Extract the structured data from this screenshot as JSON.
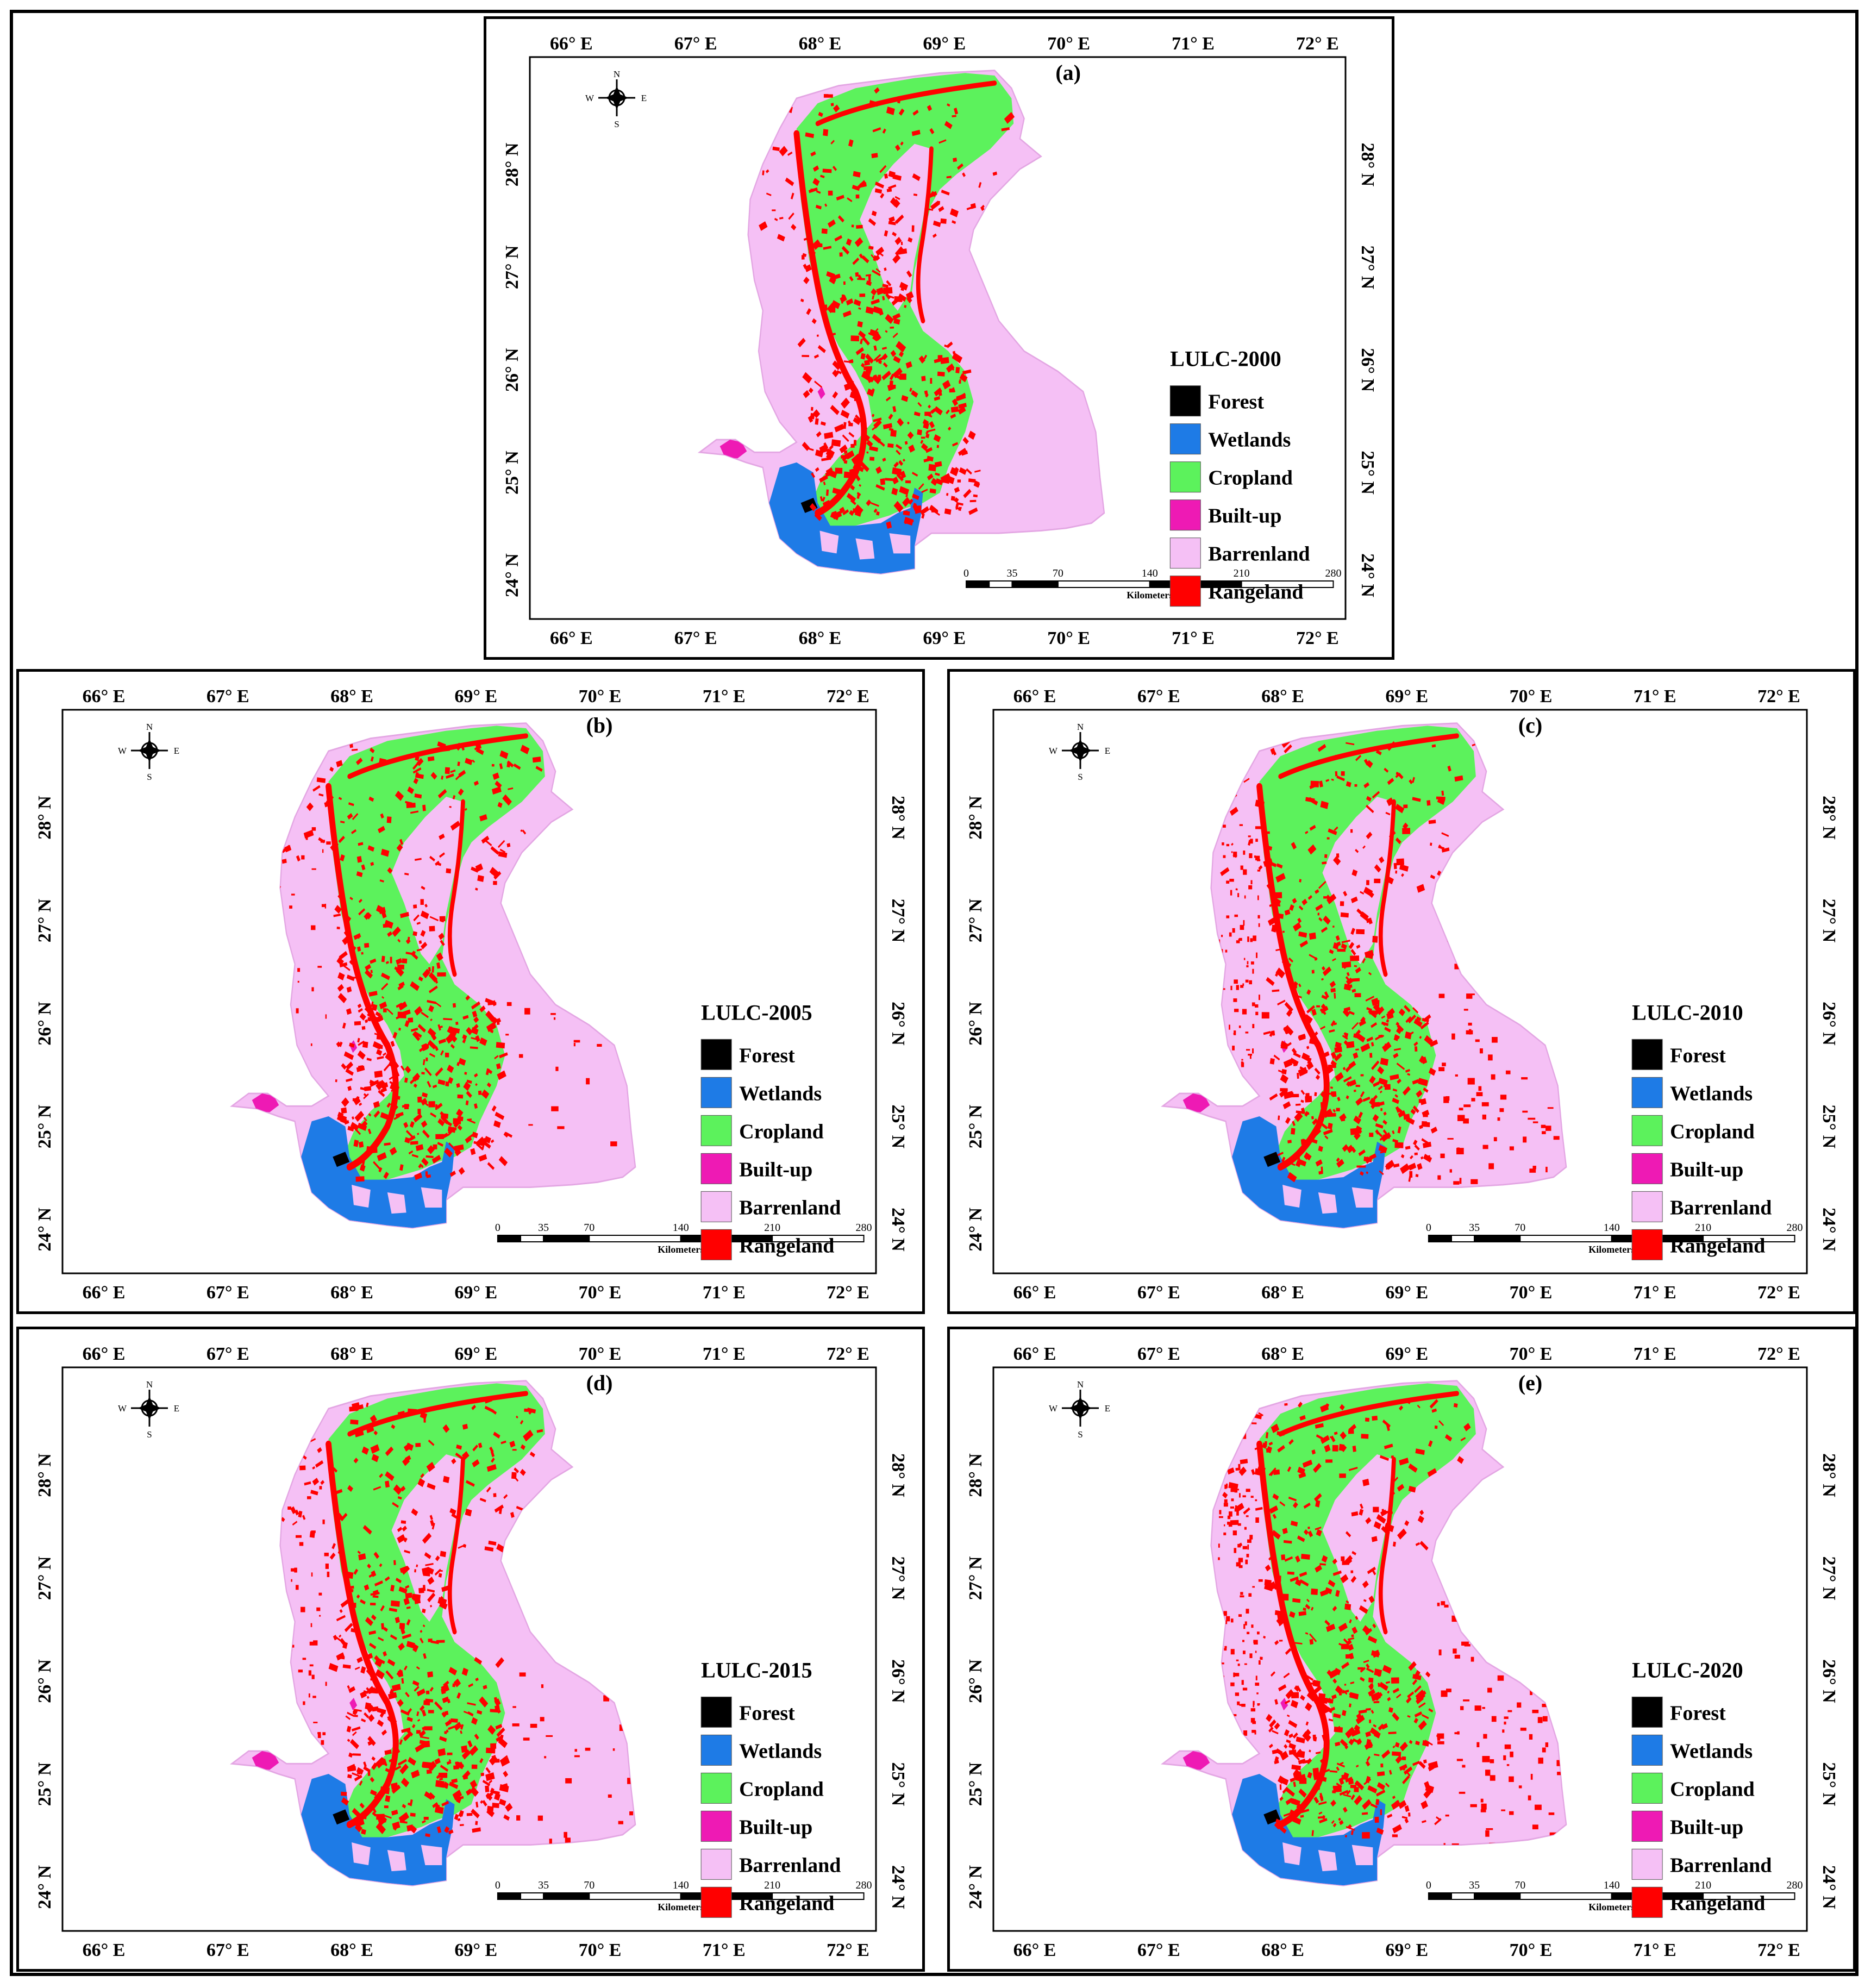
{
  "figure": {
    "longitude_labels": [
      "66° E",
      "67° E",
      "68° E",
      "69° E",
      "70° E",
      "71° E",
      "72° E"
    ],
    "latitude_labels": [
      "28° N",
      "27° N",
      "26° N",
      "25° N",
      "24° N"
    ],
    "compass": {
      "north": "N",
      "south": "S",
      "east": "E",
      "west": "W"
    },
    "scale_bar": {
      "ticks": [
        "0",
        "35",
        "70",
        "140",
        "210",
        "280"
      ],
      "unit": "Kilometers"
    },
    "legend_classes": [
      {
        "name": "Forest",
        "color": "#000000"
      },
      {
        "name": "Wetlands",
        "color": "#1e7be6"
      },
      {
        "name": "Cropland",
        "color": "#5cf25c"
      },
      {
        "name": "Built-up",
        "color": "#ee1ab4"
      },
      {
        "name": "Barrenland",
        "color": "#f5c0f5"
      },
      {
        "name": "Rangeland",
        "color": "#ff0000"
      }
    ],
    "panels": [
      {
        "id": "a",
        "label": "(a)",
        "legend_title": "LULC-2000"
      },
      {
        "id": "b",
        "label": "(b)",
        "legend_title": "LULC-2005"
      },
      {
        "id": "c",
        "label": "(c)",
        "legend_title": "LULC-2010"
      },
      {
        "id": "d",
        "label": "(d)",
        "legend_title": "LULC-2015"
      },
      {
        "id": "e",
        "label": "(e)",
        "legend_title": "LULC-2020"
      }
    ]
  }
}
